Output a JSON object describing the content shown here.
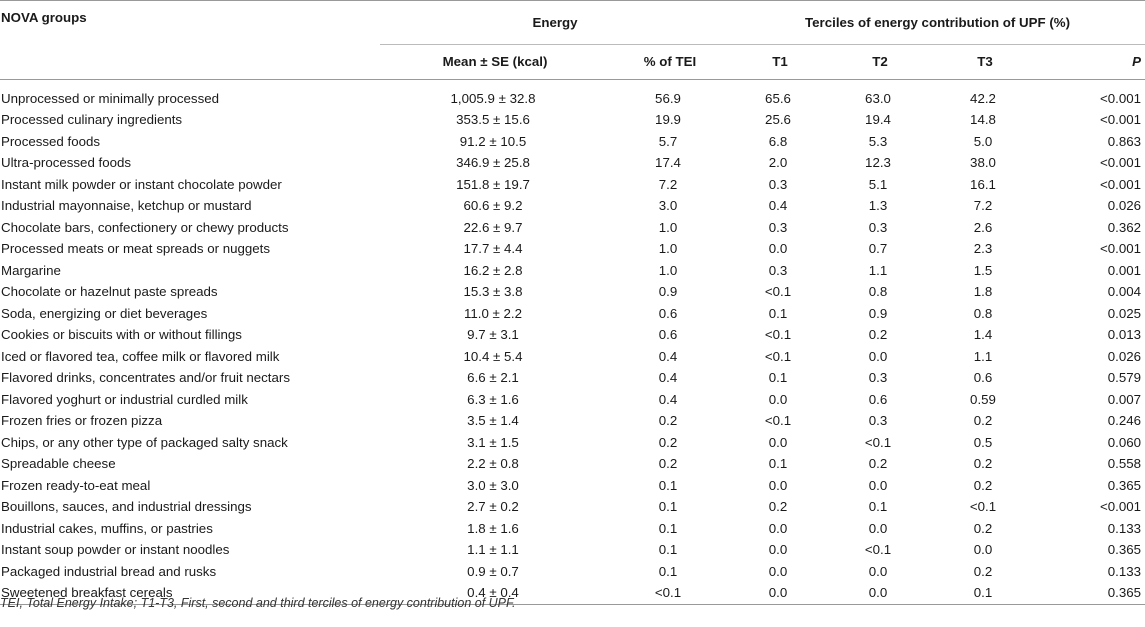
{
  "table": {
    "headers": {
      "nova": "NOVA groups",
      "energy": "Energy",
      "terciles": "Terciles of energy contribution of UPF (%)",
      "mean_se": "Mean ± SE (kcal)",
      "pct_tei": "% of TEI",
      "t1": "T1",
      "t2": "T2",
      "t3": "T3",
      "p": "P"
    },
    "rows": [
      [
        "Unprocessed or minimally processed",
        "1,005.9 ± 32.8",
        "56.9",
        "65.6",
        "63.0",
        "42.2",
        "<0.001"
      ],
      [
        "Processed culinary ingredients",
        "353.5 ± 15.6",
        "19.9",
        "25.6",
        "19.4",
        "14.8",
        "<0.001"
      ],
      [
        "Processed foods",
        "91.2 ± 10.5",
        "5.7",
        "6.8",
        "5.3",
        "5.0",
        "0.863"
      ],
      [
        "Ultra-processed foods",
        "346.9 ± 25.8",
        "17.4",
        "2.0",
        "12.3",
        "38.0",
        "<0.001"
      ],
      [
        "Instant milk powder or instant chocolate powder",
        "151.8 ± 19.7",
        "7.2",
        "0.3",
        "5.1",
        "16.1",
        "<0.001"
      ],
      [
        "Industrial mayonnaise, ketchup or mustard",
        "60.6 ± 9.2",
        "3.0",
        "0.4",
        "1.3",
        "7.2",
        "0.026"
      ],
      [
        "Chocolate bars, confectionery or chewy products",
        "22.6 ± 9.7",
        "1.0",
        "0.3",
        "0.3",
        "2.6",
        "0.362"
      ],
      [
        "Processed meats or meat spreads or nuggets",
        "17.7 ± 4.4",
        "1.0",
        "0.0",
        "0.7",
        "2.3",
        "<0.001"
      ],
      [
        "Margarine",
        "16.2 ± 2.8",
        "1.0",
        "0.3",
        "1.1",
        "1.5",
        "0.001"
      ],
      [
        "Chocolate or hazelnut paste spreads",
        "15.3 ± 3.8",
        "0.9",
        "<0.1",
        "0.8",
        "1.8",
        "0.004"
      ],
      [
        "Soda, energizing or diet beverages",
        "11.0 ± 2.2",
        "0.6",
        "0.1",
        "0.9",
        "0.8",
        "0.025"
      ],
      [
        "Cookies or biscuits with or without fillings",
        "9.7 ± 3.1",
        "0.6",
        "<0.1",
        "0.2",
        "1.4",
        "0.013"
      ],
      [
        "Iced or flavored tea, coffee milk or flavored milk",
        "10.4 ± 5.4",
        "0.4",
        "<0.1",
        "0.0",
        "1.1",
        "0.026"
      ],
      [
        "Flavored drinks, concentrates and/or fruit nectars",
        "6.6 ± 2.1",
        "0.4",
        "0.1",
        "0.3",
        "0.6",
        "0.579"
      ],
      [
        "Flavored yoghurt or industrial curdled milk",
        "6.3 ± 1.6",
        "0.4",
        "0.0",
        "0.6",
        "0.59",
        "0.007"
      ],
      [
        "Frozen fries or frozen pizza",
        "3.5 ± 1.4",
        "0.2",
        "<0.1",
        "0.3",
        "0.2",
        "0.246"
      ],
      [
        "Chips, or any other type of packaged salty snack",
        "3.1 ± 1.5",
        "0.2",
        "0.0",
        "<0.1",
        "0.5",
        "0.060"
      ],
      [
        "Spreadable cheese",
        "2.2 ± 0.8",
        "0.2",
        "0.1",
        "0.2",
        "0.2",
        "0.558"
      ],
      [
        "Frozen ready-to-eat meal",
        "3.0 ± 3.0",
        "0.1",
        "0.0",
        "0.0",
        "0.2",
        "0.365"
      ],
      [
        "Bouillons, sauces, and industrial dressings",
        "2.7 ± 0.2",
        "0.1",
        "0.2",
        "0.1",
        "<0.1",
        "<0.001"
      ],
      [
        "Industrial cakes, muffins, or pastries",
        "1.8 ± 1.6",
        "0.1",
        "0.0",
        "0.0",
        "0.2",
        "0.133"
      ],
      [
        "Instant soup powder or instant noodles",
        "1.1 ± 1.1",
        "0.1",
        "0.0",
        "<0.1",
        "0.0",
        "0.365"
      ],
      [
        "Packaged industrial bread and rusks",
        "0.9 ± 0.7",
        "0.1",
        "0.0",
        "0.0",
        "0.2",
        "0.133"
      ],
      [
        "Sweetened breakfast cereals",
        "0.4 ± 0.4",
        "<0.1",
        "0.0",
        "0.0",
        "0.1",
        "0.365"
      ]
    ]
  },
  "footnote": "TEI, Total Energy Intake; T1-T3, First, second and third terciles of energy contribution of UPF."
}
